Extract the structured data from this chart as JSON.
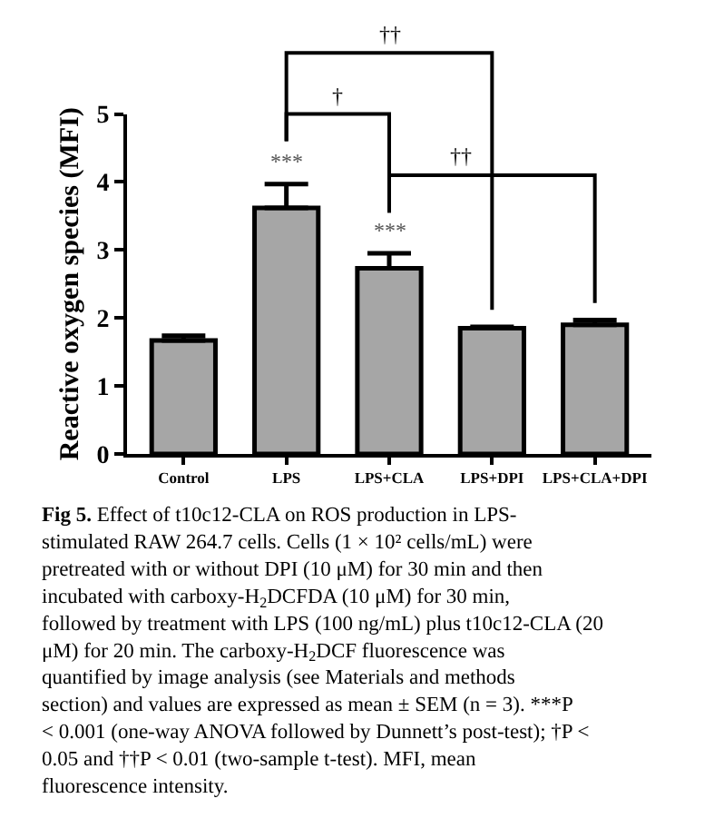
{
  "chart_data": {
    "type": "bar",
    "ylabel": "Reactive oxygen species (MFI)",
    "categories": [
      "Control",
      "LPS",
      "LPS+CLA",
      "LPS+DPI",
      "LPS+CLA+DPI"
    ],
    "values": [
      1.67,
      3.62,
      2.73,
      1.85,
      1.9
    ],
    "errors": [
      [
        1.67,
        1.74
      ],
      [
        3.62,
        3.97
      ],
      [
        2.73,
        2.95
      ],
      [
        1.85,
        1.87
      ],
      [
        1.9,
        1.97
      ]
    ],
    "color": "#a6a6a6",
    "ylim": [
      0,
      5
    ],
    "yticks": [
      0,
      1,
      2,
      3,
      4,
      5
    ],
    "annotations": [
      "***",
      "***",
      "††",
      "†",
      "††",
      "Fig 5. Effect of t10c12-CLA on ROS production in LPS-stimulated RAW 264.7 cells. Cells (1 × 10² cells/mL) were pretreated with or without DPI (10 μM) for 30 min and then incubated with carboxy-H$_{2}$DCFDA (10 μM) for 30 min, followed by treatment with LPS (100 ng/mL) plus t10c12-CLA (20 μM) for 20 min. The carboxy-H$_{2}$DCF fluorescence was quantified by image analysis (see Materials and methods section) and values are expressed as mean ± SEM (n = 3). ***P < 0.001 (one-way ANOVA followed by Dunnett’s post-test); †P < 0.05 and ††P < 0.01 (two-sample t-test). MFI, mean fluorescence intensity."
    ]
  }
}
